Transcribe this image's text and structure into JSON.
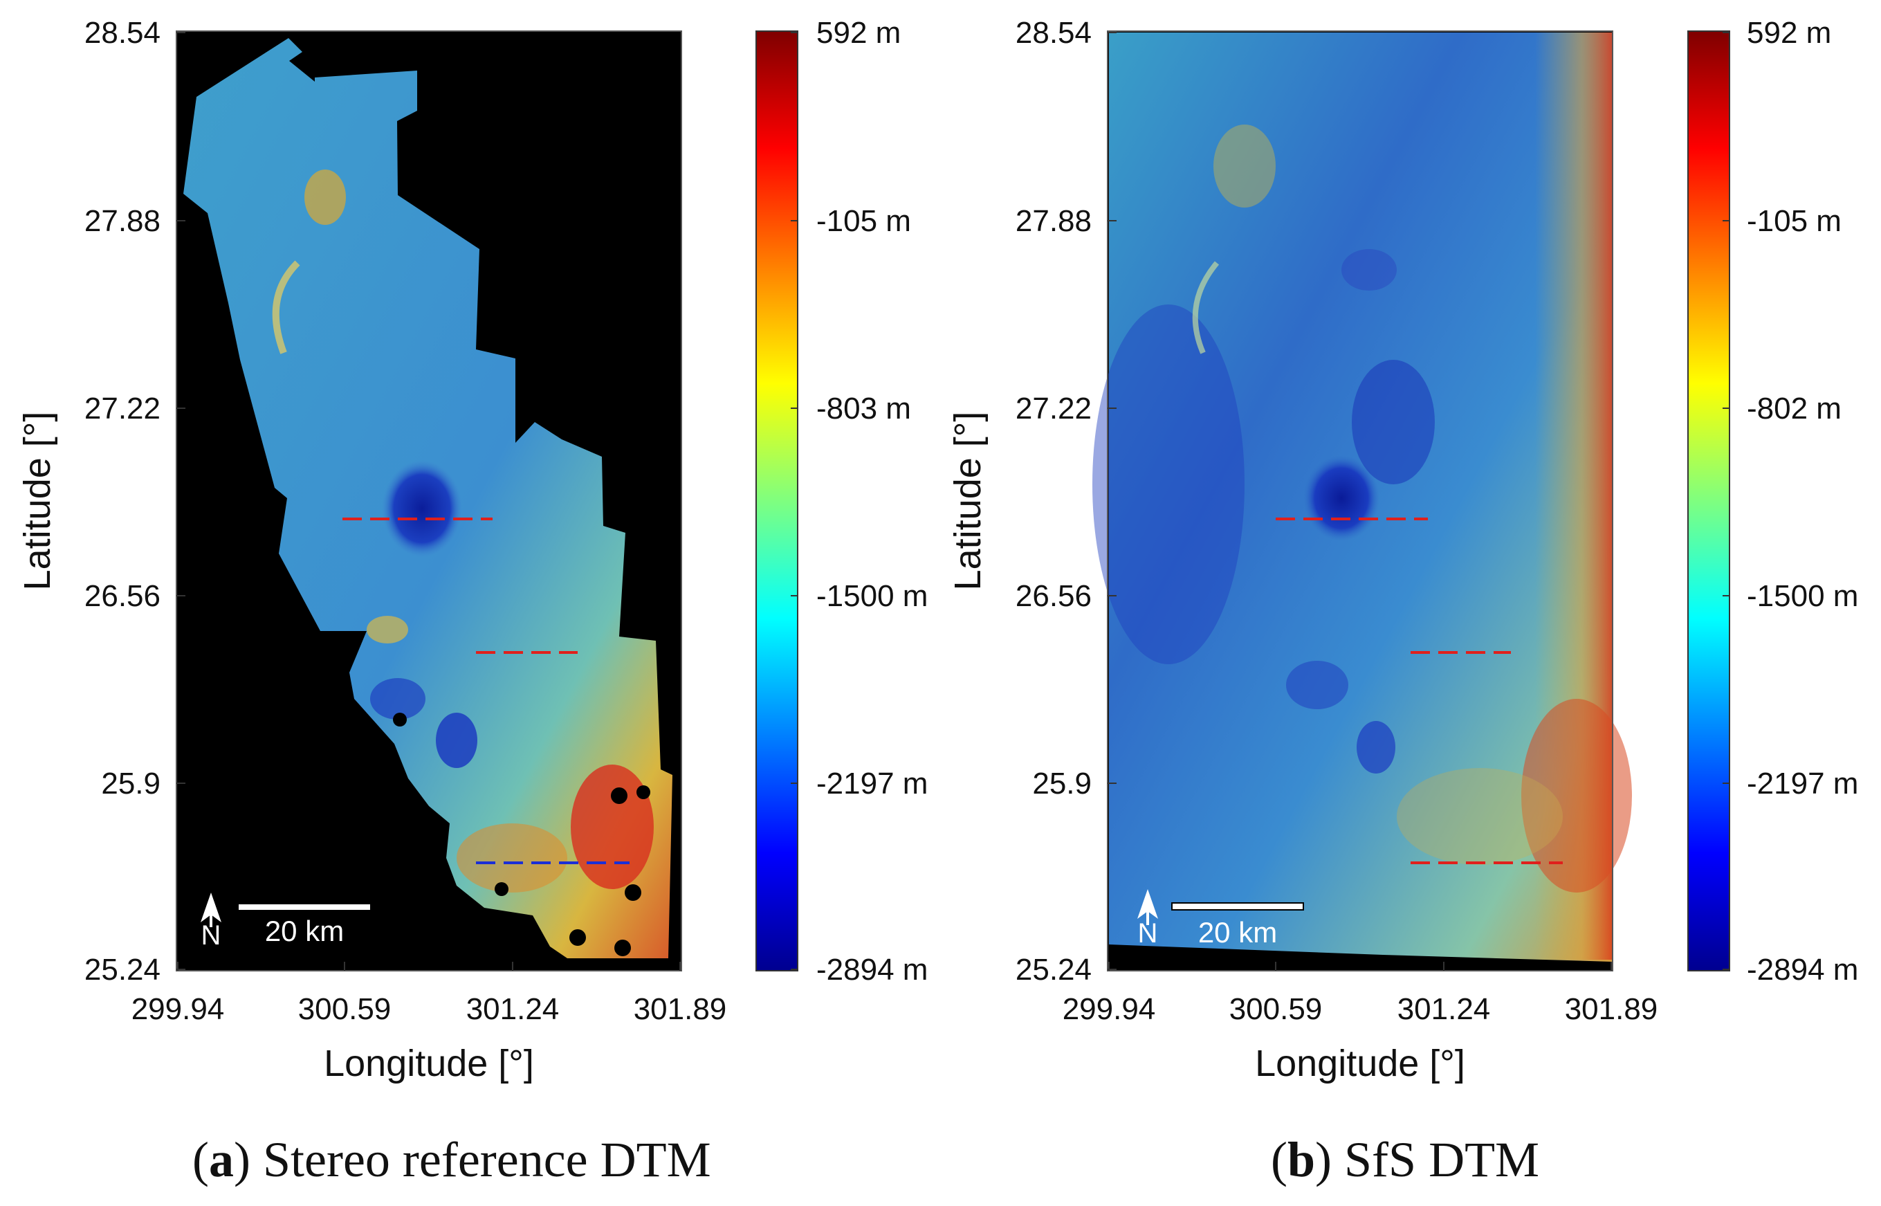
{
  "panels": [
    {
      "id": "a",
      "caption_letter": "a",
      "caption_text": "Stereo reference DTM",
      "y_axis_label": "Latitude [°]",
      "x_axis_label": "Longitude [°]",
      "y_ticks": [
        "28.54",
        "27.88",
        "27.22",
        "26.56",
        "25.9",
        "25.24"
      ],
      "x_ticks": [
        "299.94",
        "300.59",
        "301.24",
        "301.89"
      ],
      "colorbar_labels": [
        "592 m",
        "-105 m",
        "-803 m",
        "-1500 m",
        "-2197 m",
        "-2894 m"
      ],
      "north_label": "N",
      "scalebar_label": "20 km"
    },
    {
      "id": "b",
      "caption_letter": "b",
      "caption_text": "SfS DTM",
      "y_axis_label": "Latitude [°]",
      "x_axis_label": "Longitude [°]",
      "y_ticks": [
        "28.54",
        "27.88",
        "27.22",
        "26.56",
        "25.9",
        "25.24"
      ],
      "x_ticks": [
        "299.94",
        "300.59",
        "301.24",
        "301.89"
      ],
      "colorbar_labels": [
        "592 m",
        "-105 m",
        "-802 m",
        "-1500 m",
        "-2197 m",
        "-2894 m"
      ],
      "north_label": "N",
      "scalebar_label": "20 km"
    }
  ],
  "colors": {
    "background_black": "#000000",
    "profile_red": "#e0201c",
    "profile_blue": "#1b2fd6"
  }
}
